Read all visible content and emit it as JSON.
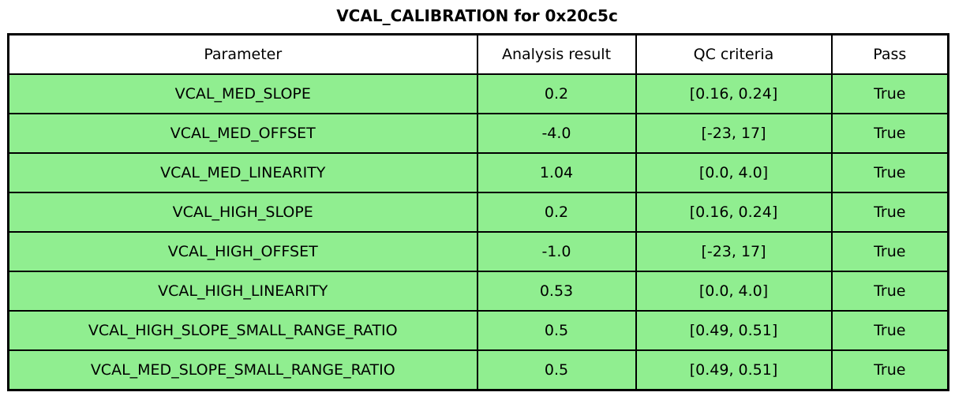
{
  "title": "VCAL_CALIBRATION for 0x20c5c",
  "colors": {
    "pass_row_bg": "#90EE90",
    "header_bg": "#FFFFFF",
    "border": "#000000",
    "text": "#000000"
  },
  "chart_data": {
    "type": "table",
    "title": "VCAL_CALIBRATION for 0x20c5c",
    "columns": [
      "Parameter",
      "Analysis result",
      "QC criteria",
      "Pass"
    ],
    "rows": [
      [
        "VCAL_MED_SLOPE",
        "0.2",
        "[0.16, 0.24]",
        "True"
      ],
      [
        "VCAL_MED_OFFSET",
        "-4.0",
        "[-23, 17]",
        "True"
      ],
      [
        "VCAL_MED_LINEARITY",
        "1.04",
        "[0.0, 4.0]",
        "True"
      ],
      [
        "VCAL_HIGH_SLOPE",
        "0.2",
        "[0.16, 0.24]",
        "True"
      ],
      [
        "VCAL_HIGH_OFFSET",
        "-1.0",
        "[-23, 17]",
        "True"
      ],
      [
        "VCAL_HIGH_LINEARITY",
        "0.53",
        "[0.0, 4.0]",
        "True"
      ],
      [
        "VCAL_HIGH_SLOPE_SMALL_RANGE_RATIO",
        "0.5",
        "[0.49, 0.51]",
        "True"
      ],
      [
        "VCAL_MED_SLOPE_SMALL_RANGE_RATIO",
        "0.5",
        "[0.49, 0.51]",
        "True"
      ]
    ],
    "layout": {
      "legend": false,
      "grid": false,
      "all_rows_pass": true
    }
  }
}
